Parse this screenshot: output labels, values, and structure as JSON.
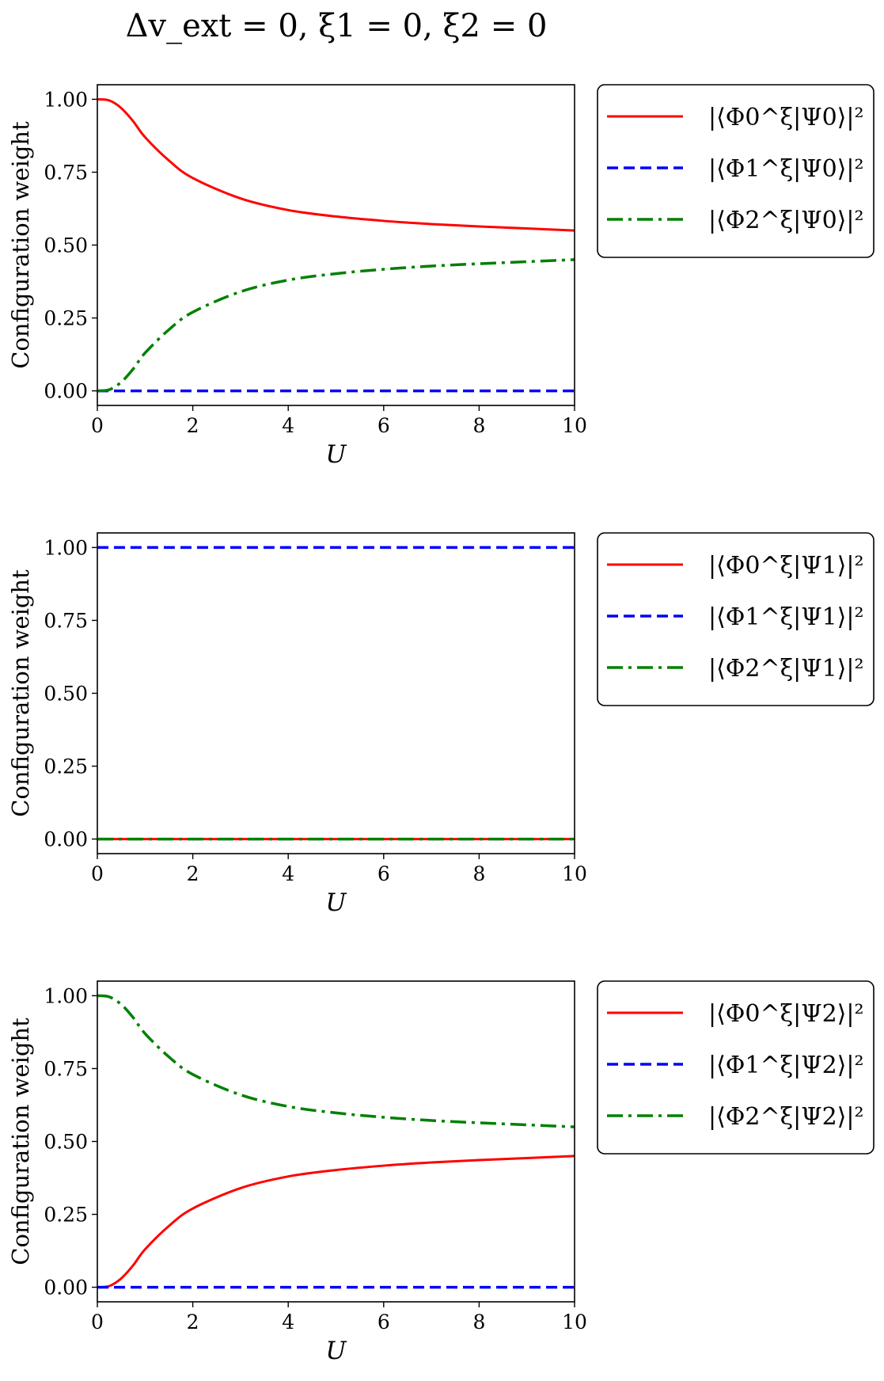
{
  "figure": {
    "title": "Δv_ext = 0, ξ1 = 0, ξ2 = 0"
  },
  "styles": {
    "series": [
      {
        "color": "#ff0000",
        "dash": "solid",
        "width": 3
      },
      {
        "color": "#0000ff",
        "dash": "dashed",
        "width": 3.5
      },
      {
        "color": "#008000",
        "dash": "dashdot",
        "width": 3.5
      }
    ]
  },
  "chart_data": [
    {
      "type": "line",
      "title": "Δv_ext = 0, ξ1 = 0, ξ2 = 0",
      "xlabel": "U",
      "ylabel": "Configuration weight",
      "xlim": [
        0,
        10
      ],
      "ylim": [
        -0.05,
        1.05
      ],
      "xticks": [
        "0",
        "2",
        "4",
        "6",
        "8",
        "10"
      ],
      "yticks": [
        "0.00",
        "0.25",
        "0.50",
        "0.75",
        "1.00"
      ],
      "legend_position": "outside-right",
      "grid": false,
      "x": [
        0,
        0.25,
        0.5,
        0.75,
        1,
        1.5,
        2,
        3,
        4,
        5,
        6,
        7,
        8,
        9,
        10
      ],
      "series": [
        {
          "name": "|⟨Φ0^ξ|Ψ0⟩|²",
          "values": [
            1.0,
            0.996,
            0.97,
            0.925,
            0.87,
            0.79,
            0.73,
            0.66,
            0.62,
            0.598,
            0.583,
            0.572,
            0.564,
            0.557,
            0.55
          ]
        },
        {
          "name": "|⟨Φ1^ξ|Ψ0⟩|²",
          "values": [
            0,
            0,
            0,
            0,
            0,
            0,
            0,
            0,
            0,
            0,
            0,
            0,
            0,
            0,
            0
          ]
        },
        {
          "name": "|⟨Φ2^ξ|Ψ0⟩|²",
          "values": [
            0.0,
            0.004,
            0.03,
            0.075,
            0.13,
            0.21,
            0.27,
            0.34,
            0.38,
            0.402,
            0.417,
            0.428,
            0.436,
            0.443,
            0.45
          ]
        }
      ]
    },
    {
      "type": "line",
      "xlabel": "U",
      "ylabel": "Configuration weight",
      "xlim": [
        0,
        10
      ],
      "ylim": [
        -0.05,
        1.05
      ],
      "xticks": [
        "0",
        "2",
        "4",
        "6",
        "8",
        "10"
      ],
      "yticks": [
        "0.00",
        "0.25",
        "0.50",
        "0.75",
        "1.00"
      ],
      "legend_position": "outside-right",
      "grid": false,
      "x": [
        0,
        10
      ],
      "series": [
        {
          "name": "|⟨Φ0^ξ|Ψ1⟩|²",
          "values": [
            0,
            0
          ]
        },
        {
          "name": "|⟨Φ1^ξ|Ψ1⟩|²",
          "values": [
            1,
            1
          ]
        },
        {
          "name": "|⟨Φ2^ξ|Ψ1⟩|²",
          "values": [
            0,
            0
          ]
        }
      ]
    },
    {
      "type": "line",
      "xlabel": "U",
      "ylabel": "Configuration weight",
      "xlim": [
        0,
        10
      ],
      "ylim": [
        -0.05,
        1.05
      ],
      "xticks": [
        "0",
        "2",
        "4",
        "6",
        "8",
        "10"
      ],
      "yticks": [
        "0.00",
        "0.25",
        "0.50",
        "0.75",
        "1.00"
      ],
      "legend_position": "outside-right",
      "grid": false,
      "x": [
        0,
        0.25,
        0.5,
        0.75,
        1,
        1.5,
        2,
        3,
        4,
        5,
        6,
        7,
        8,
        9,
        10
      ],
      "series": [
        {
          "name": "|⟨Φ0^ξ|Ψ2⟩|²",
          "values": [
            0.0,
            0.004,
            0.03,
            0.075,
            0.13,
            0.21,
            0.27,
            0.34,
            0.38,
            0.402,
            0.417,
            0.428,
            0.436,
            0.443,
            0.45
          ]
        },
        {
          "name": "|⟨Φ1^ξ|Ψ2⟩|²",
          "values": [
            0,
            0,
            0,
            0,
            0,
            0,
            0,
            0,
            0,
            0,
            0,
            0,
            0,
            0,
            0
          ]
        },
        {
          "name": "|⟨Φ2^ξ|Ψ2⟩|²",
          "values": [
            1.0,
            0.996,
            0.97,
            0.925,
            0.87,
            0.79,
            0.73,
            0.66,
            0.62,
            0.598,
            0.583,
            0.572,
            0.564,
            0.557,
            0.55
          ]
        }
      ]
    }
  ]
}
